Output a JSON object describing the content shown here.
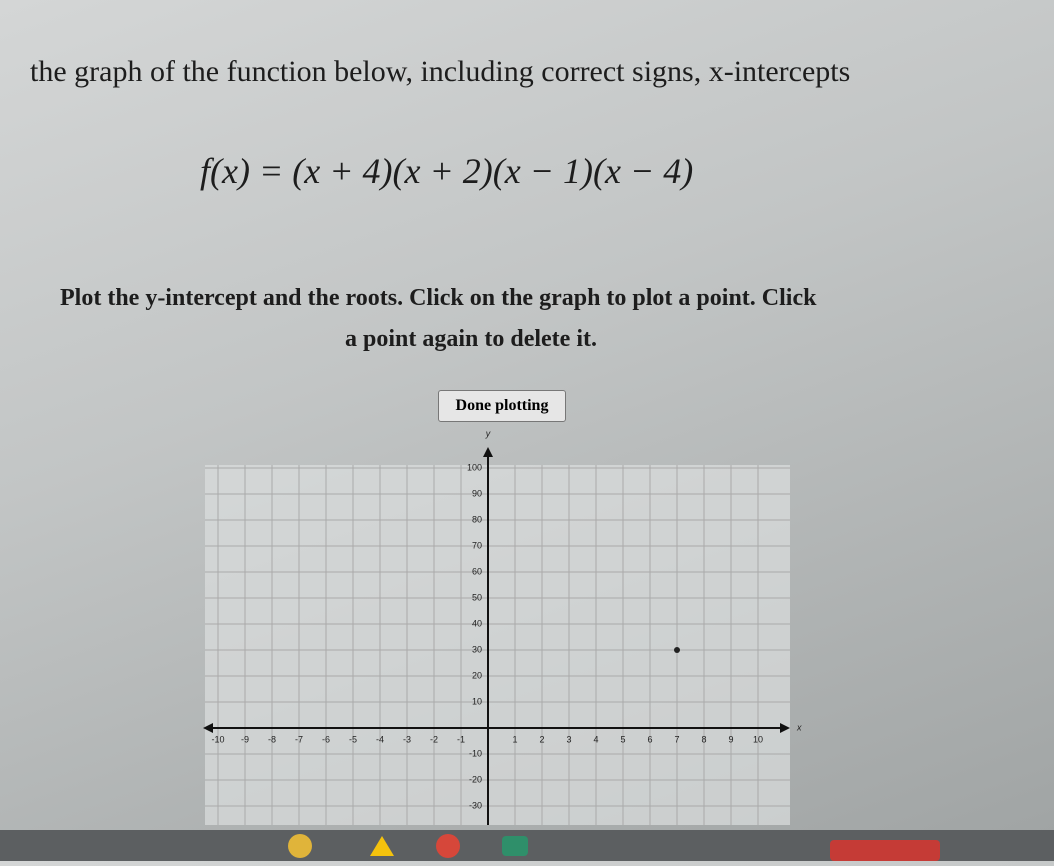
{
  "header": {
    "instruction": "the graph of the function below, including correct signs, x-intercepts",
    "formula": "f(x) = (x + 4)(x + 2)(x − 1)(x − 4)"
  },
  "prompt": {
    "line1": "Plot the y-intercept and the roots. Click on the graph to plot a point. Click",
    "line2": "a point again to delete it."
  },
  "button": {
    "label": "Done plotting"
  },
  "graph": {
    "x_label": "x",
    "y_label": "y",
    "xlim": [
      -10,
      10
    ],
    "ylim": [
      -30,
      100
    ],
    "xticks": [
      -10,
      -9,
      -8,
      -7,
      -6,
      -5,
      -4,
      -3,
      -2,
      -1,
      1,
      2,
      3,
      4,
      5,
      6,
      7,
      8,
      9,
      10
    ],
    "yticks": [
      -30,
      -20,
      -10,
      10,
      20,
      30,
      40,
      50,
      60,
      70,
      80,
      90,
      100
    ],
    "points": [
      {
        "x": 7,
        "y": 30
      }
    ]
  }
}
